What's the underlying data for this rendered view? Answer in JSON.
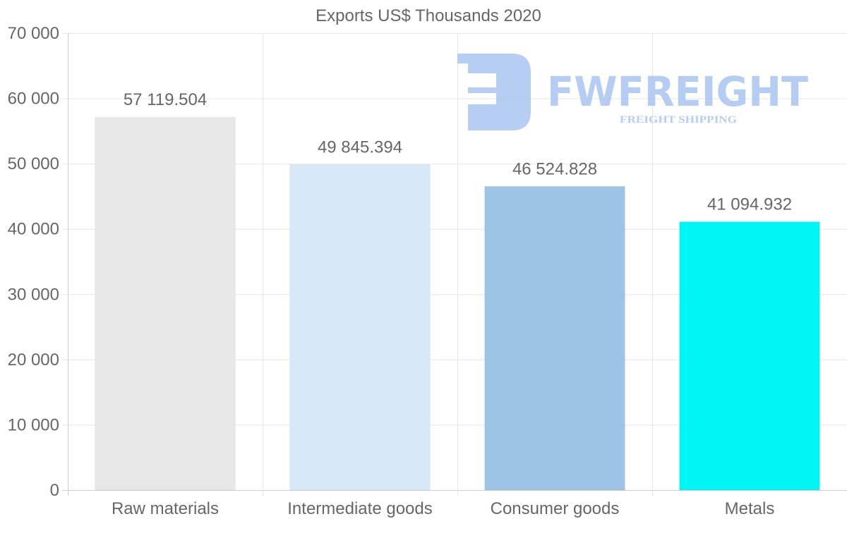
{
  "chart_data": {
    "type": "bar",
    "title": "Exports US$ Thousands 2020",
    "xlabel": "",
    "ylabel": "",
    "categories": [
      "Raw materials",
      "Intermediate goods",
      "Consumer goods",
      "Metals"
    ],
    "values": [
      57119.504,
      49845.394,
      46524.828,
      41094.932
    ],
    "data_labels": [
      "57 119.504",
      "49 845.394",
      "46 524.828",
      "41 094.932"
    ],
    "colors": [
      "#e8e8e8",
      "#d8e8f8",
      "#9dc3e6",
      "#00f5f5"
    ],
    "ylim": [
      0,
      70000
    ],
    "yticks": [
      0,
      10000,
      20000,
      30000,
      40000,
      50000,
      60000,
      70000
    ],
    "ytick_labels": [
      "0",
      "10 000",
      "20 000",
      "30 000",
      "40 000",
      "50 000",
      "60 000",
      "70 000"
    ],
    "grid": true,
    "legend": "none"
  },
  "watermark": {
    "brand": "FWFREIGHT",
    "tagline": "FREIGHT SHIPPING",
    "color": "#a9c4f2"
  }
}
